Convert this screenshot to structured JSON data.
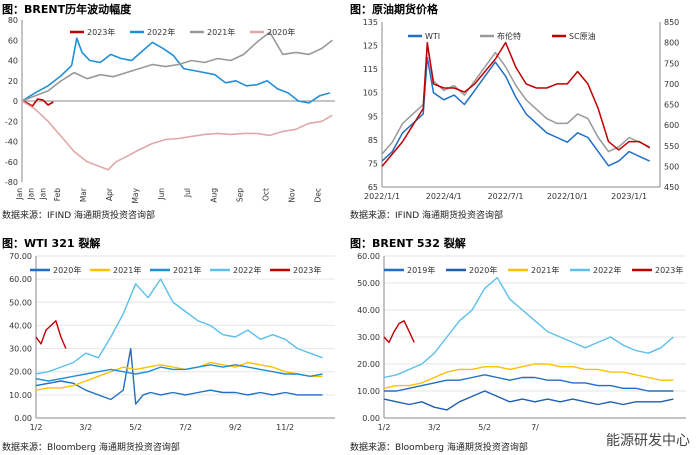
{
  "chart_data": [
    {
      "type": "line",
      "title": "图：BRENT历年波动幅度",
      "source": "数据来源：IFIND   海通期货投资咨询部",
      "ylim": [
        -80,
        80
      ],
      "yticks": [
        -80,
        -60,
        -40,
        -20,
        0,
        20,
        40,
        60,
        80
      ],
      "xlim": [
        0,
        12
      ],
      "categories": [
        "Jan",
        "Jan",
        "Jan",
        "Feb",
        "Mar",
        "Apr",
        "May",
        "Jun",
        "Jul",
        "Aug",
        "Sep",
        "Oct",
        "Nov",
        "Dec"
      ],
      "category_positions": [
        0,
        0.45,
        0.9,
        1.45,
        2.45,
        3.45,
        4.45,
        5.45,
        6.45,
        7.45,
        8.45,
        9.45,
        10.45,
        11.45
      ],
      "series": [
        {
          "name": "2023年",
          "color": "#c00000",
          "x": [
            0,
            0.2,
            0.4,
            0.6,
            0.8,
            1.0,
            1.2
          ],
          "y": [
            0,
            -2,
            -5,
            2,
            1,
            -4,
            -1
          ]
        },
        {
          "name": "2022年",
          "color": "#1f8fd6",
          "x": [
            0,
            0.5,
            1,
            1.5,
            1.9,
            2.1,
            2.3,
            2.6,
            3,
            3.4,
            3.8,
            4.2,
            4.6,
            5,
            5.4,
            5.8,
            6.2,
            6.6,
            7,
            7.4,
            7.8,
            8.2,
            8.6,
            9,
            9.4,
            9.8,
            10.2,
            10.6,
            11,
            11.4,
            11.8
          ],
          "y": [
            0,
            8,
            15,
            25,
            35,
            62,
            48,
            40,
            38,
            46,
            42,
            40,
            49,
            58,
            52,
            45,
            32,
            30,
            28,
            26,
            18,
            20,
            15,
            16,
            20,
            12,
            8,
            0,
            -2,
            5,
            8
          ]
        },
        {
          "name": "2021年",
          "color": "#999999",
          "x": [
            0,
            0.5,
            1,
            1.5,
            2,
            2.5,
            3,
            3.5,
            4,
            4.5,
            5,
            5.5,
            6,
            6.5,
            7,
            7.5,
            8,
            8.5,
            9,
            9.5,
            10,
            10.5,
            11,
            11.5,
            11.9
          ],
          "y": [
            0,
            5,
            10,
            20,
            28,
            22,
            26,
            24,
            28,
            32,
            36,
            34,
            36,
            40,
            38,
            42,
            40,
            46,
            58,
            68,
            46,
            48,
            46,
            52,
            60
          ]
        },
        {
          "name": "2020年",
          "color": "#e0a8a8",
          "x": [
            0,
            0.5,
            1,
            1.5,
            2,
            2.5,
            3,
            3.3,
            3.6,
            4,
            4.5,
            5,
            5.5,
            6,
            6.5,
            7,
            7.5,
            8,
            8.5,
            9,
            9.5,
            10,
            10.5,
            11,
            11.5,
            11.9
          ],
          "y": [
            0,
            -8,
            -20,
            -35,
            -50,
            -60,
            -65,
            -68,
            -60,
            -55,
            -48,
            -42,
            -38,
            -37,
            -35,
            -33,
            -32,
            -33,
            -32,
            -32,
            -34,
            -30,
            -28,
            -22,
            -20,
            -14
          ]
        }
      ]
    },
    {
      "type": "line",
      "title": "图：原油期货价格",
      "source": "数据来源：IFIND   海通期货投资咨询部",
      "ylim_left": [
        65,
        135
      ],
      "ylim_right": [
        450,
        850
      ],
      "yticks_left": [
        65,
        75,
        85,
        95,
        105,
        115,
        125,
        135
      ],
      "yticks_right": [
        450,
        500,
        550,
        600,
        650,
        700,
        750,
        800,
        850
      ],
      "xlim": [
        0,
        13.5
      ],
      "x_tick_labels": [
        "2022/1/1",
        "2022/4/1",
        "2022/7/1",
        "2022/10/1",
        "2023/1/1"
      ],
      "x_tick_positions": [
        0,
        3,
        6,
        9,
        12
      ],
      "series": [
        {
          "name": "WTI",
          "color": "#1f6fc6",
          "axis": "left",
          "x": [
            0,
            0.5,
            1,
            1.5,
            2,
            2.2,
            2.5,
            3,
            3.5,
            4,
            4.5,
            5,
            5.5,
            6,
            6.5,
            7,
            7.5,
            8,
            8.5,
            9,
            9.5,
            10,
            10.5,
            11,
            11.5,
            12,
            12.5,
            13
          ],
          "y": [
            76,
            80,
            88,
            92,
            96,
            120,
            105,
            102,
            104,
            100,
            106,
            112,
            118,
            112,
            103,
            96,
            92,
            88,
            86,
            84,
            88,
            86,
            80,
            74,
            76,
            80,
            78,
            76
          ]
        },
        {
          "name": "布伦特",
          "color": "#999999",
          "axis": "left",
          "x": [
            0,
            0.5,
            1,
            1.5,
            2,
            2.2,
            2.5,
            3,
            3.5,
            4,
            4.5,
            5,
            5.5,
            6,
            6.5,
            7,
            7.5,
            8,
            8.5,
            9,
            9.5,
            10,
            10.5,
            11,
            11.5,
            12,
            12.5,
            13
          ],
          "y": [
            79,
            84,
            92,
            96,
            100,
            125,
            110,
            106,
            108,
            104,
            110,
            116,
            122,
            116,
            108,
            102,
            98,
            94,
            92,
            92,
            96,
            94,
            86,
            80,
            82,
            86,
            84,
            82
          ]
        },
        {
          "name": "SC原油",
          "color": "#c00000",
          "axis": "right",
          "x": [
            0,
            0.5,
            1,
            1.5,
            2,
            2.2,
            2.5,
            3,
            3.5,
            4,
            4.5,
            5,
            5.5,
            6,
            6.5,
            7,
            7.5,
            8,
            8.5,
            9,
            9.5,
            10,
            10.5,
            11,
            11.5,
            12,
            12.5,
            13
          ],
          "y": [
            500,
            530,
            560,
            600,
            640,
            800,
            700,
            690,
            690,
            680,
            700,
            730,
            760,
            800,
            740,
            700,
            690,
            690,
            700,
            700,
            730,
            700,
            640,
            560,
            540,
            560,
            560,
            545
          ]
        }
      ],
      "legend": [
        "WTI",
        "布伦特",
        "SC原油"
      ]
    },
    {
      "type": "line",
      "title": "图：WTI 321 裂解",
      "source": "数据来源：Bloomberg   海通期货投资咨询部",
      "ylim": [
        0,
        70
      ],
      "yticks": [
        0,
        10,
        20,
        30,
        40,
        50,
        60,
        70
      ],
      "ytick_labels": [
        "0.00",
        "10.00",
        "20.00",
        "30.00",
        "40.00",
        "50.00",
        "60.00",
        "70.00"
      ],
      "xlim": [
        0,
        12
      ],
      "x_tick_labels": [
        "1/2",
        "3/2",
        "5/2",
        "7/2",
        "9/2",
        "11/2"
      ],
      "x_tick_positions": [
        0,
        2,
        4,
        6,
        8,
        10
      ],
      "series": [
        {
          "name": "2020年",
          "color": "#1f6fc6",
          "x": [
            0,
            0.5,
            1,
            1.5,
            2,
            2.5,
            3,
            3.5,
            3.8,
            4,
            4.3,
            4.6,
            5,
            5.5,
            6,
            6.5,
            7,
            7.5,
            8,
            8.5,
            9,
            9.5,
            10,
            10.5,
            11,
            11.5
          ],
          "y": [
            14,
            15,
            16,
            15,
            12,
            10,
            8,
            12,
            30,
            6,
            10,
            11,
            10,
            11,
            10,
            11,
            12,
            11,
            11,
            10,
            11,
            10,
            11,
            10,
            10,
            10
          ]
        },
        {
          "name": "2021年",
          "color": "#ffc000",
          "x": [
            0,
            0.5,
            1,
            1.5,
            2,
            2.5,
            3,
            3.5,
            4,
            4.5,
            5,
            5.5,
            6,
            6.5,
            7,
            7.5,
            8,
            8.5,
            9,
            9.5,
            10,
            10.5,
            11,
            11.5
          ],
          "y": [
            12,
            13,
            13,
            14,
            16,
            18,
            20,
            22,
            21,
            22,
            23,
            22,
            21,
            22,
            24,
            23,
            22,
            24,
            23,
            22,
            20,
            19,
            18,
            18
          ]
        },
        {
          "name": "2021年",
          "color": "#1f8fd6",
          "x": [
            0,
            0.5,
            1,
            1.5,
            2,
            2.5,
            3,
            3.5,
            4,
            4.5,
            5,
            5.5,
            6,
            6.5,
            7,
            7.5,
            8,
            8.5,
            9,
            9.5,
            10,
            10.5,
            11,
            11.5
          ],
          "y": [
            17,
            16,
            17,
            18,
            19,
            20,
            21,
            20,
            19,
            20,
            22,
            21,
            21,
            22,
            23,
            22,
            23,
            22,
            21,
            20,
            19,
            19,
            18,
            19
          ]
        },
        {
          "name": "2022年",
          "color": "#5bc0eb",
          "x": [
            0,
            0.5,
            1,
            1.5,
            2,
            2.5,
            3,
            3.5,
            4,
            4.5,
            5,
            5.5,
            6,
            6.5,
            7,
            7.5,
            8,
            8.5,
            9,
            9.5,
            10,
            10.5,
            11,
            11.5
          ],
          "y": [
            19,
            20,
            22,
            24,
            28,
            26,
            35,
            45,
            58,
            52,
            60,
            50,
            46,
            42,
            40,
            36,
            35,
            38,
            34,
            36,
            34,
            30,
            28,
            26
          ]
        },
        {
          "name": "2023年",
          "color": "#c00000",
          "x": [
            0,
            0.2,
            0.4,
            0.6,
            0.8,
            1.0,
            1.2
          ],
          "y": [
            35,
            32,
            38,
            40,
            42,
            35,
            30
          ]
        }
      ],
      "legend": [
        "2020年",
        "2021年",
        "2021年",
        "2022年",
        "2023年"
      ]
    },
    {
      "type": "line",
      "title": "图：BRENT 532 裂解",
      "source": "数据来源：Bloomberg   海通期货投资咨询部",
      "ylim": [
        0,
        60
      ],
      "yticks": [
        0,
        10,
        20,
        30,
        40,
        50,
        60
      ],
      "ytick_labels": [
        "0.00",
        "10.00",
        "20.00",
        "30.00",
        "40.00",
        "50.00",
        "60.00"
      ],
      "xlim": [
        0,
        12
      ],
      "x_tick_labels": [
        "1/2",
        "3/2",
        "5/2",
        "7/"
      ],
      "x_tick_positions": [
        0,
        2,
        4,
        6
      ],
      "series": [
        {
          "name": "2019年",
          "color": "#1f6fc6",
          "x": [
            0,
            0.5,
            1,
            1.5,
            2,
            2.5,
            3,
            3.5,
            4,
            4.5,
            5,
            5.5,
            6,
            6.5,
            7,
            7.5,
            8,
            8.5,
            9,
            9.5,
            10,
            10.5,
            11,
            11.5
          ],
          "y": [
            10,
            10,
            11,
            12,
            13,
            14,
            14,
            15,
            16,
            15,
            14,
            15,
            15,
            14,
            14,
            13,
            13,
            12,
            12,
            11,
            11,
            10,
            10,
            10
          ]
        },
        {
          "name": "2020年",
          "color": "#1f5fb0",
          "x": [
            0,
            0.5,
            1,
            1.5,
            2,
            2.5,
            3,
            3.5,
            4,
            4.5,
            5,
            5.5,
            6,
            6.5,
            7,
            7.5,
            8,
            8.5,
            9,
            9.5,
            10,
            10.5,
            11,
            11.5
          ],
          "y": [
            7,
            6,
            5,
            6,
            4,
            3,
            6,
            8,
            10,
            8,
            6,
            7,
            6,
            7,
            6,
            7,
            6,
            5,
            6,
            5,
            6,
            6,
            6,
            7
          ]
        },
        {
          "name": "2021年",
          "color": "#ffc000",
          "x": [
            0,
            0.5,
            1,
            1.5,
            2,
            2.5,
            3,
            3.5,
            4,
            4.5,
            5,
            5.5,
            6,
            6.5,
            7,
            7.5,
            8,
            8.5,
            9,
            9.5,
            10,
            10.5,
            11,
            11.5
          ],
          "y": [
            11,
            12,
            12,
            13,
            15,
            17,
            18,
            18,
            19,
            19,
            18,
            19,
            20,
            20,
            19,
            19,
            18,
            18,
            17,
            17,
            16,
            15,
            14,
            14
          ]
        },
        {
          "name": "2022年",
          "color": "#5bc0eb",
          "x": [
            0,
            0.5,
            1,
            1.5,
            2,
            2.5,
            3,
            3.5,
            4,
            4.5,
            5,
            5.5,
            6,
            6.5,
            7,
            7.5,
            8,
            8.5,
            9,
            9.5,
            10,
            10.5,
            11,
            11.5
          ],
          "y": [
            15,
            16,
            18,
            20,
            24,
            30,
            36,
            40,
            48,
            52,
            44,
            40,
            36,
            32,
            30,
            28,
            26,
            28,
            30,
            27,
            25,
            24,
            26,
            30
          ]
        },
        {
          "name": "2023年",
          "color": "#c00000",
          "x": [
            0,
            0.2,
            0.4,
            0.6,
            0.8,
            1.0,
            1.2
          ],
          "y": [
            30,
            28,
            32,
            35,
            36,
            32,
            28
          ]
        }
      ],
      "legend": [
        "2019年",
        "2020年",
        "2021年",
        "2022年",
        "2023年"
      ]
    }
  ],
  "watermark": "能源研发中心"
}
